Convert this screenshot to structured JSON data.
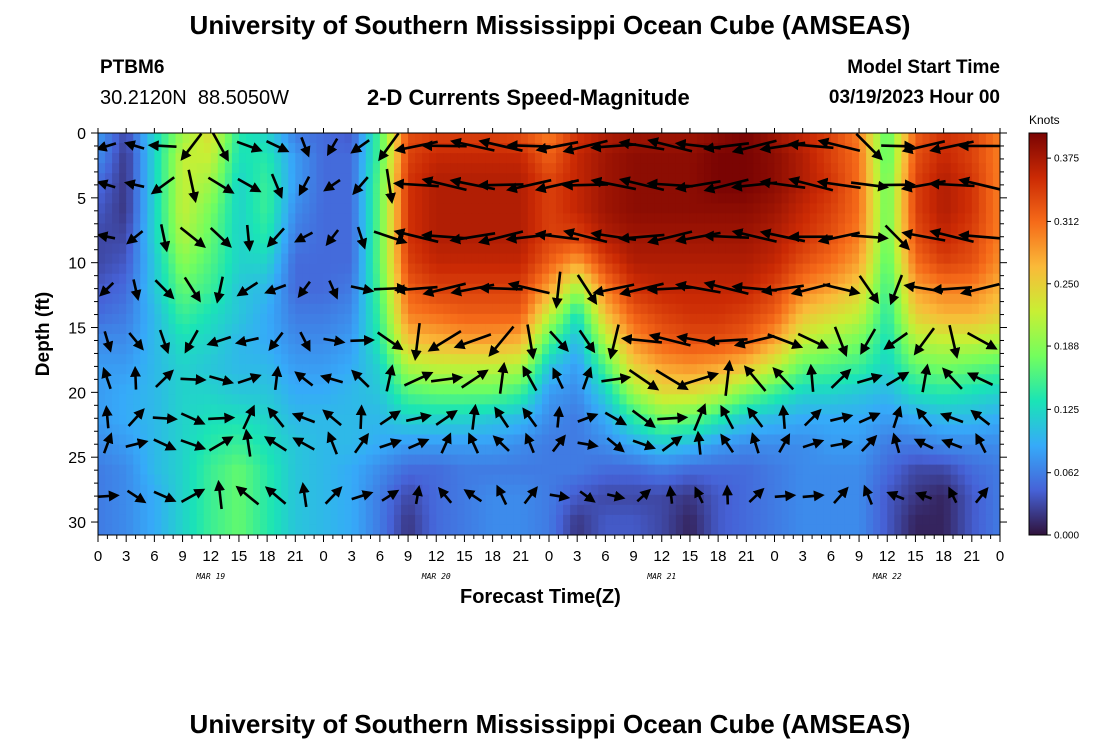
{
  "header": {
    "title": "University of Southern Mississippi Ocean Cube (AMSEAS)",
    "station_id": "PTBM6",
    "station_coords": "30.2120N  88.5050W",
    "subtitle": "2-D Currents Speed-Magnitude",
    "model_start_label": "Model Start Time",
    "model_start_value": "03/19/2023 Hour 00"
  },
  "footer": {
    "title": "University of Southern Mississippi Ocean Cube (AMSEAS)"
  },
  "chart_data": {
    "type": "heatmap",
    "title": "2-D Currents Speed-Magnitude",
    "xlabel": "Forecast Time(Z)",
    "ylabel": "Depth (ft)",
    "x_tick_labels": [
      "0",
      "3",
      "6",
      "9",
      "12",
      "15",
      "18",
      "21",
      "0",
      "3",
      "6",
      "9",
      "12",
      "15",
      "18",
      "21",
      "0",
      "3",
      "6",
      "9",
      "12",
      "15",
      "18",
      "21",
      "0",
      "3",
      "6",
      "9",
      "12",
      "15",
      "18",
      "21",
      "0"
    ],
    "date_labels": [
      {
        "label": "MAR 19",
        "hour": 12
      },
      {
        "label": "MAR 20",
        "hour": 36
      },
      {
        "label": "MAR 21",
        "hour": 60
      },
      {
        "label": "MAR 22",
        "hour": 84
      }
    ],
    "xlim": [
      0,
      96
    ],
    "ylim": [
      0,
      31
    ],
    "y_ticks": [
      0,
      5,
      10,
      15,
      20,
      25,
      30
    ],
    "colorbar": {
      "label": "Knots",
      "range": [
        0,
        0.4
      ],
      "ticks": [
        "0.000",
        "0.062",
        "0.125",
        "0.188",
        "0.250",
        "0.312",
        "0.375"
      ],
      "tick_values": [
        0,
        0.062,
        0.125,
        0.188,
        0.25,
        0.312,
        0.375
      ],
      "colors": [
        "#30123b",
        "#4662d7",
        "#36aaf9",
        "#1ae4b6",
        "#72fe5e",
        "#c8ef34",
        "#faba39",
        "#f66b19",
        "#cb2a04",
        "#7a0403"
      ]
    },
    "depths_ft": [
      0,
      2,
      4,
      6,
      8,
      10,
      12,
      14,
      16,
      18,
      20,
      22,
      24,
      26,
      28,
      30
    ],
    "hours": [
      0,
      3,
      6,
      9,
      12,
      15,
      18,
      21,
      24,
      27,
      30,
      33,
      36,
      39,
      42,
      45,
      48,
      51,
      54,
      57,
      60,
      63,
      66,
      69,
      72,
      75,
      78,
      81,
      84,
      87,
      90,
      93,
      96
    ],
    "speed_knots": [
      [
        0.08,
        0.03,
        0.12,
        0.2,
        0.24,
        0.14,
        0.12,
        0.06,
        0.05,
        0.04,
        0.16,
        0.33,
        0.34,
        0.34,
        0.34,
        0.33,
        0.3,
        0.35,
        0.37,
        0.38,
        0.38,
        0.38,
        0.39,
        0.4,
        0.38,
        0.36,
        0.34,
        0.3,
        0.16,
        0.32,
        0.35,
        0.34,
        0.3
      ],
      [
        0.07,
        0.02,
        0.12,
        0.22,
        0.22,
        0.13,
        0.14,
        0.08,
        0.05,
        0.05,
        0.16,
        0.34,
        0.36,
        0.36,
        0.36,
        0.36,
        0.32,
        0.36,
        0.38,
        0.39,
        0.39,
        0.39,
        0.4,
        0.4,
        0.39,
        0.37,
        0.34,
        0.31,
        0.16,
        0.33,
        0.36,
        0.34,
        0.3
      ],
      [
        0.05,
        0.02,
        0.12,
        0.22,
        0.2,
        0.12,
        0.15,
        0.08,
        0.05,
        0.05,
        0.17,
        0.35,
        0.37,
        0.37,
        0.37,
        0.37,
        0.34,
        0.36,
        0.38,
        0.39,
        0.39,
        0.39,
        0.4,
        0.4,
        0.39,
        0.37,
        0.35,
        0.31,
        0.17,
        0.34,
        0.37,
        0.35,
        0.3
      ],
      [
        0.04,
        0.02,
        0.12,
        0.22,
        0.18,
        0.12,
        0.15,
        0.07,
        0.05,
        0.05,
        0.17,
        0.35,
        0.37,
        0.37,
        0.37,
        0.37,
        0.34,
        0.36,
        0.38,
        0.39,
        0.39,
        0.39,
        0.39,
        0.39,
        0.38,
        0.36,
        0.34,
        0.31,
        0.17,
        0.34,
        0.37,
        0.35,
        0.3
      ],
      [
        0.03,
        0.03,
        0.12,
        0.21,
        0.17,
        0.12,
        0.14,
        0.06,
        0.05,
        0.05,
        0.17,
        0.35,
        0.37,
        0.37,
        0.37,
        0.37,
        0.34,
        0.34,
        0.37,
        0.38,
        0.38,
        0.38,
        0.38,
        0.38,
        0.37,
        0.35,
        0.33,
        0.3,
        0.17,
        0.33,
        0.36,
        0.34,
        0.3
      ],
      [
        0.03,
        0.04,
        0.11,
        0.19,
        0.16,
        0.12,
        0.12,
        0.05,
        0.05,
        0.05,
        0.17,
        0.34,
        0.36,
        0.36,
        0.36,
        0.36,
        0.32,
        0.28,
        0.34,
        0.37,
        0.37,
        0.37,
        0.37,
        0.37,
        0.36,
        0.33,
        0.31,
        0.28,
        0.16,
        0.31,
        0.34,
        0.33,
        0.29
      ],
      [
        0.04,
        0.05,
        0.11,
        0.17,
        0.15,
        0.11,
        0.1,
        0.05,
        0.05,
        0.06,
        0.16,
        0.32,
        0.34,
        0.34,
        0.34,
        0.34,
        0.28,
        0.2,
        0.3,
        0.35,
        0.36,
        0.36,
        0.36,
        0.36,
        0.34,
        0.3,
        0.28,
        0.25,
        0.15,
        0.28,
        0.3,
        0.3,
        0.27
      ],
      [
        0.05,
        0.06,
        0.1,
        0.15,
        0.13,
        0.11,
        0.09,
        0.06,
        0.06,
        0.07,
        0.15,
        0.3,
        0.31,
        0.32,
        0.32,
        0.32,
        0.22,
        0.13,
        0.26,
        0.32,
        0.34,
        0.35,
        0.35,
        0.34,
        0.32,
        0.26,
        0.24,
        0.22,
        0.14,
        0.25,
        0.27,
        0.27,
        0.25
      ],
      [
        0.07,
        0.07,
        0.1,
        0.13,
        0.12,
        0.1,
        0.09,
        0.07,
        0.07,
        0.08,
        0.14,
        0.26,
        0.27,
        0.28,
        0.28,
        0.27,
        0.16,
        0.1,
        0.21,
        0.29,
        0.32,
        0.33,
        0.33,
        0.32,
        0.28,
        0.22,
        0.2,
        0.18,
        0.13,
        0.21,
        0.22,
        0.22,
        0.21
      ],
      [
        0.08,
        0.08,
        0.1,
        0.12,
        0.11,
        0.1,
        0.1,
        0.08,
        0.08,
        0.09,
        0.12,
        0.21,
        0.22,
        0.22,
        0.22,
        0.21,
        0.11,
        0.08,
        0.16,
        0.25,
        0.28,
        0.29,
        0.28,
        0.26,
        0.22,
        0.17,
        0.16,
        0.15,
        0.12,
        0.17,
        0.18,
        0.17,
        0.16
      ],
      [
        0.08,
        0.09,
        0.1,
        0.12,
        0.12,
        0.11,
        0.11,
        0.09,
        0.09,
        0.1,
        0.11,
        0.16,
        0.17,
        0.17,
        0.17,
        0.15,
        0.08,
        0.07,
        0.12,
        0.2,
        0.24,
        0.24,
        0.22,
        0.18,
        0.15,
        0.12,
        0.12,
        0.11,
        0.1,
        0.13,
        0.14,
        0.13,
        0.12
      ],
      [
        0.08,
        0.09,
        0.1,
        0.12,
        0.13,
        0.13,
        0.12,
        0.1,
        0.1,
        0.1,
        0.1,
        0.12,
        0.12,
        0.12,
        0.11,
        0.1,
        0.07,
        0.06,
        0.09,
        0.14,
        0.18,
        0.17,
        0.14,
        0.11,
        0.1,
        0.09,
        0.09,
        0.09,
        0.08,
        0.09,
        0.1,
        0.1,
        0.09
      ],
      [
        0.07,
        0.08,
        0.1,
        0.12,
        0.14,
        0.15,
        0.13,
        0.11,
        0.1,
        0.1,
        0.09,
        0.08,
        0.08,
        0.08,
        0.08,
        0.07,
        0.06,
        0.06,
        0.07,
        0.09,
        0.11,
        0.1,
        0.08,
        0.07,
        0.07,
        0.07,
        0.08,
        0.08,
        0.06,
        0.06,
        0.07,
        0.07,
        0.07
      ],
      [
        0.06,
        0.07,
        0.1,
        0.12,
        0.15,
        0.17,
        0.14,
        0.11,
        0.1,
        0.09,
        0.07,
        0.05,
        0.05,
        0.06,
        0.06,
        0.06,
        0.06,
        0.06,
        0.05,
        0.05,
        0.06,
        0.05,
        0.05,
        0.05,
        0.06,
        0.07,
        0.07,
        0.07,
        0.05,
        0.03,
        0.03,
        0.05,
        0.06
      ],
      [
        0.06,
        0.07,
        0.09,
        0.12,
        0.15,
        0.17,
        0.14,
        0.11,
        0.1,
        0.09,
        0.06,
        0.03,
        0.05,
        0.06,
        0.07,
        0.07,
        0.06,
        0.04,
        0.03,
        0.03,
        0.03,
        0.02,
        0.04,
        0.05,
        0.06,
        0.07,
        0.07,
        0.07,
        0.04,
        0.02,
        0.01,
        0.04,
        0.06
      ],
      [
        0.06,
        0.07,
        0.09,
        0.12,
        0.15,
        0.17,
        0.14,
        0.11,
        0.1,
        0.09,
        0.06,
        0.02,
        0.05,
        0.06,
        0.07,
        0.07,
        0.06,
        0.02,
        0.04,
        0.04,
        0.03,
        0.01,
        0.04,
        0.05,
        0.06,
        0.07,
        0.07,
        0.07,
        0.04,
        0.01,
        0.01,
        0.04,
        0.06
      ]
    ]
  }
}
